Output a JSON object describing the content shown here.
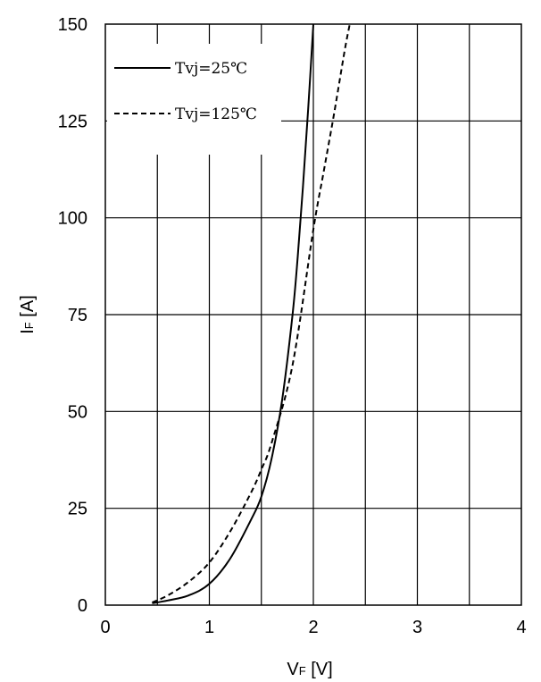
{
  "chart_data": {
    "type": "line",
    "title": "",
    "x_axis": {
      "label_main": "V",
      "label_sub": "F",
      "label_unit": " [V]",
      "range": [
        0,
        4
      ],
      "ticks": [
        0,
        1,
        2,
        3,
        4
      ],
      "tick_labels": [
        "0",
        "1",
        "2",
        "3",
        "4"
      ],
      "grid": true
    },
    "y_axis": {
      "label_main": "I",
      "label_sub": "F",
      "label_unit": " [A]",
      "range": [
        0,
        150
      ],
      "ticks": [
        0,
        25,
        50,
        75,
        100,
        125,
        150
      ],
      "tick_labels": [
        "0",
        "25",
        "50",
        "75",
        "100",
        "125",
        "150"
      ],
      "grid": true
    },
    "legend": {
      "position": "top-left",
      "entries": [
        {
          "label": "Tvj=25℃",
          "style": "solid"
        },
        {
          "label": "Tvj=125℃",
          "style": "dashed"
        }
      ]
    },
    "series": [
      {
        "name": "Tvj=25℃",
        "style": "solid",
        "color": "#000000",
        "x": [
          0.45,
          0.6,
          0.8,
          1.0,
          1.2,
          1.4,
          1.5,
          1.6,
          1.7,
          1.8,
          1.85,
          1.9,
          1.95,
          2.0
        ],
        "y": [
          0.5,
          1.2,
          2.5,
          5.5,
          12,
          22,
          28,
          38,
          53,
          75,
          90,
          108,
          128,
          150
        ]
      },
      {
        "name": "Tvj=125℃",
        "style": "dashed",
        "color": "#000000",
        "x": [
          0.45,
          0.6,
          0.8,
          1.0,
          1.2,
          1.4,
          1.5,
          1.6,
          1.8,
          2.0,
          2.1,
          2.2,
          2.3,
          2.35
        ],
        "y": [
          0.7,
          2.5,
          6,
          11,
          19,
          29,
          35,
          42,
          62,
          97,
          112,
          127,
          143,
          150
        ]
      }
    ]
  }
}
